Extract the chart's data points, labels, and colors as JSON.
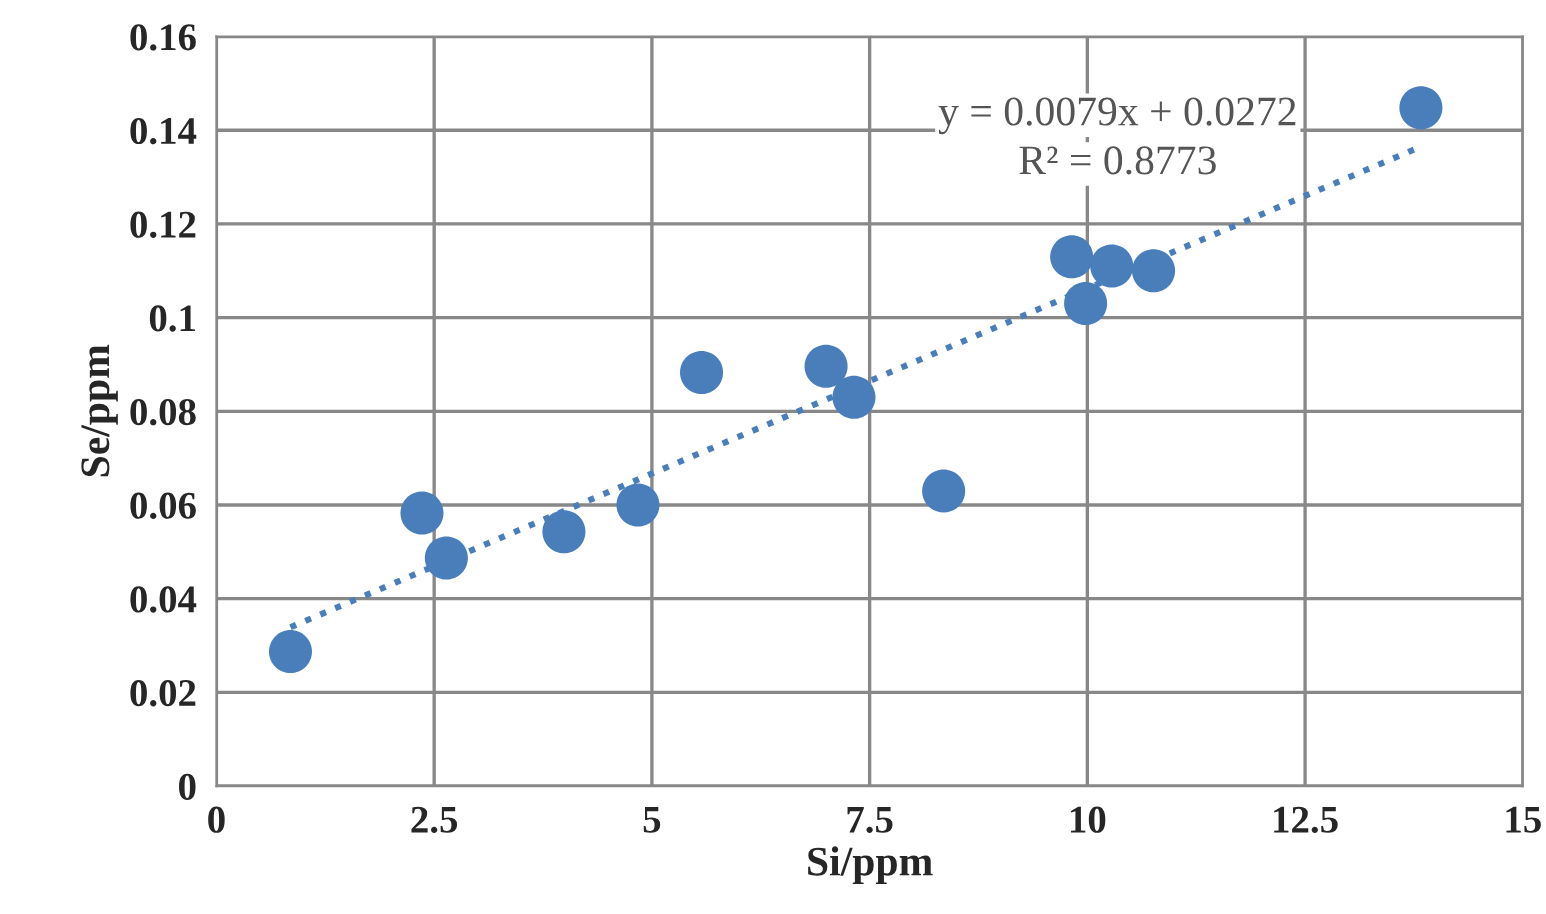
{
  "chart_data": {
    "type": "scatter",
    "xlabel": "Si/ppm",
    "ylabel": "Se/ppm",
    "xlim": [
      0,
      15
    ],
    "ylim": [
      0,
      0.16
    ],
    "xticks": [
      0,
      2.5,
      5,
      7.5,
      10,
      12.5,
      15
    ],
    "yticks": [
      0,
      0.02,
      0.04,
      0.06,
      0.08,
      0.1,
      0.12,
      0.14,
      0.16
    ],
    "grid": true,
    "series": [
      {
        "marker": "circle",
        "color": "#4a7ebb",
        "x": [
          0.85,
          2.36,
          2.64,
          3.99,
          4.84,
          5.57,
          7.0,
          7.32,
          8.35,
          9.82,
          9.98,
          10.28,
          10.76,
          13.83
        ],
        "values": [
          0.0287,
          0.0583,
          0.0487,
          0.0543,
          0.06,
          0.0883,
          0.0896,
          0.083,
          0.063,
          0.113,
          0.103,
          0.111,
          0.11,
          0.1448
        ]
      },
      {
        "type": "line",
        "color": "#4a7ebb",
        "line_style": "dotted",
        "x": [
          0.85,
          13.83
        ],
        "values": [
          0.0339,
          0.1365
        ]
      }
    ],
    "annotations": [
      "y = 0.0079x + 0.0272",
      "R² = 0.8773"
    ]
  }
}
